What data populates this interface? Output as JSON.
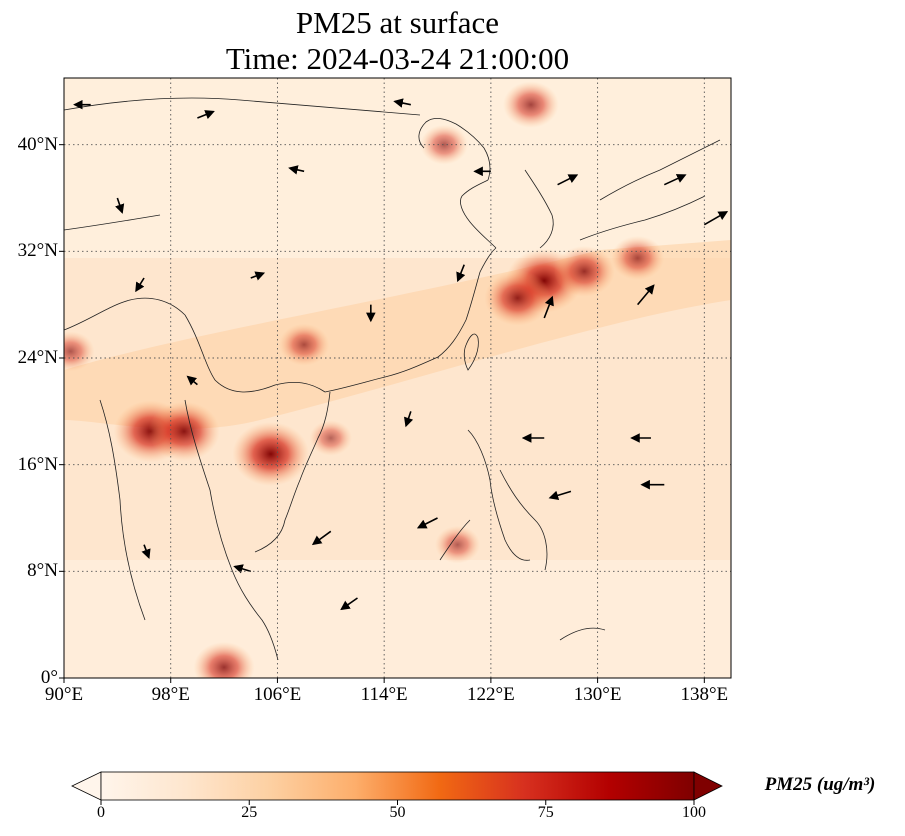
{
  "title": {
    "line1": "PM25 at surface",
    "line2": "Time: 2024-03-24 21:00:00"
  },
  "map": {
    "variable": "PM25",
    "level": "surface",
    "lon_range": [
      90,
      140
    ],
    "lat_range": [
      0,
      45
    ],
    "gridlines": "dotted",
    "lon_ticks": [
      {
        "value": 90,
        "label": "90°E"
      },
      {
        "value": 98,
        "label": "98°E"
      },
      {
        "value": 106,
        "label": "106°E"
      },
      {
        "value": 114,
        "label": "114°E"
      },
      {
        "value": 122,
        "label": "122°E"
      },
      {
        "value": 130,
        "label": "130°E"
      },
      {
        "value": 138,
        "label": "138°E"
      }
    ],
    "lat_ticks": [
      {
        "value": 0,
        "label": "0°"
      },
      {
        "value": 8,
        "label": "8°N"
      },
      {
        "value": 16,
        "label": "16°N"
      },
      {
        "value": 24,
        "label": "24°N"
      },
      {
        "value": 32,
        "label": "32°N"
      },
      {
        "value": 40,
        "label": "40°N"
      }
    ],
    "hotspots": [
      {
        "lon": 105.5,
        "lat": 16.8,
        "value": 100
      },
      {
        "lon": 96.5,
        "lat": 18.5,
        "value": 95
      },
      {
        "lon": 99.0,
        "lat": 18.5,
        "value": 90
      },
      {
        "lon": 126.0,
        "lat": 29.8,
        "value": 100
      },
      {
        "lon": 124.0,
        "lat": 28.5,
        "value": 80
      },
      {
        "lon": 129.0,
        "lat": 30.5,
        "value": 70
      },
      {
        "lon": 133.0,
        "lat": 31.5,
        "value": 55
      },
      {
        "lon": 102.0,
        "lat": 0.8,
        "value": 70
      },
      {
        "lon": 125.0,
        "lat": 43.0,
        "value": 60
      },
      {
        "lon": 118.5,
        "lat": 40.0,
        "value": 45
      },
      {
        "lon": 108.0,
        "lat": 25.0,
        "value": 50
      },
      {
        "lon": 90.5,
        "lat": 24.5,
        "value": 45
      },
      {
        "lon": 119.5,
        "lat": 10.0,
        "value": 40
      },
      {
        "lon": 110.0,
        "lat": 18.0,
        "value": 35
      }
    ],
    "wind_arrows": [
      {
        "lon": 92,
        "lat": 43,
        "u": -1,
        "v": 0
      },
      {
        "lon": 100,
        "lat": 42,
        "u": 1,
        "v": 0.4
      },
      {
        "lon": 116,
        "lat": 43,
        "u": -1,
        "v": 0.2
      },
      {
        "lon": 122,
        "lat": 38,
        "u": -1,
        "v": 0
      },
      {
        "lon": 127,
        "lat": 37,
        "u": 1.2,
        "v": 0.6
      },
      {
        "lon": 135,
        "lat": 37,
        "u": 1.3,
        "v": 0.6
      },
      {
        "lon": 138,
        "lat": 34,
        "u": 1.4,
        "v": 0.8
      },
      {
        "lon": 133,
        "lat": 28,
        "u": 1,
        "v": 1.2
      },
      {
        "lon": 126,
        "lat": 27,
        "u": 0.5,
        "v": 1.3
      },
      {
        "lon": 113,
        "lat": 28,
        "u": 0,
        "v": -1
      },
      {
        "lon": 104,
        "lat": 30,
        "u": 0.8,
        "v": 0.3
      },
      {
        "lon": 96,
        "lat": 30,
        "u": -0.5,
        "v": -0.8
      },
      {
        "lon": 100,
        "lat": 22,
        "u": -0.6,
        "v": 0.5
      },
      {
        "lon": 116,
        "lat": 20,
        "u": -0.3,
        "v": -0.9
      },
      {
        "lon": 126,
        "lat": 18,
        "u": -1.3,
        "v": 0
      },
      {
        "lon": 134,
        "lat": 18,
        "u": -1.2,
        "v": 0
      },
      {
        "lon": 128,
        "lat": 14,
        "u": -1.3,
        "v": -0.4
      },
      {
        "lon": 135,
        "lat": 14.5,
        "u": -1.4,
        "v": 0
      },
      {
        "lon": 118,
        "lat": 12,
        "u": -1.2,
        "v": -0.6
      },
      {
        "lon": 110,
        "lat": 11,
        "u": -1.1,
        "v": -0.8
      },
      {
        "lon": 104,
        "lat": 8,
        "u": -1,
        "v": 0.3
      },
      {
        "lon": 112,
        "lat": 6,
        "u": -1,
        "v": -0.7
      },
      {
        "lon": 96,
        "lat": 10,
        "u": 0.3,
        "v": -0.8
      },
      {
        "lon": 94,
        "lat": 36,
        "u": 0.3,
        "v": -0.9
      },
      {
        "lon": 108,
        "lat": 38,
        "u": -0.9,
        "v": 0.2
      },
      {
        "lon": 120,
        "lat": 31,
        "u": -0.4,
        "v": -1
      }
    ]
  },
  "colorbar": {
    "label": "PM25 (ug/m³)",
    "min": 0,
    "max": 100,
    "extend": "both",
    "ticks": [
      {
        "value": 0,
        "label": "0"
      },
      {
        "value": 25,
        "label": "25"
      },
      {
        "value": 50,
        "label": "50"
      },
      {
        "value": 75,
        "label": "75"
      },
      {
        "value": 100,
        "label": "100"
      }
    ],
    "colors": [
      "#fff5eb",
      "#fee6ce",
      "#fdd0a2",
      "#fdae6b",
      "#f16913",
      "#d7301f",
      "#b30000",
      "#7f0000"
    ]
  }
}
